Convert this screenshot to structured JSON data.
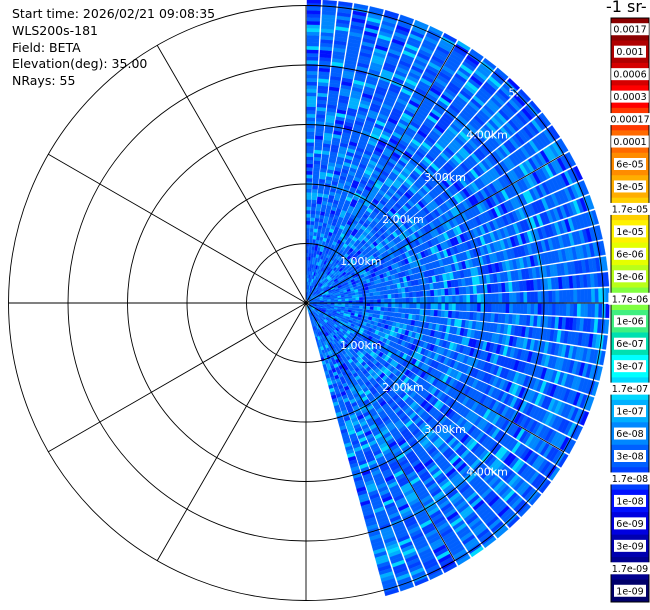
{
  "header": {
    "start_time": "Start time: 2026/02/21 09:08:35",
    "instrument": "WLS200s-181",
    "field": "Field: BETA",
    "elevation": "Elevation(deg): 35.00",
    "nrays": "NRays: 55"
  },
  "colorbar": {
    "title_fragment": "-1 sr-",
    "labels": [
      "0.0017",
      "0.001",
      "0.0006",
      "0.0003",
      "0.00017",
      "0.0001",
      "6e-05",
      "3e-05",
      "1.7e-05",
      "1e-05",
      "6e-06",
      "3e-06",
      "1.7e-06",
      "1e-06",
      "6e-07",
      "3e-07",
      "1.7e-07",
      "1e-07",
      "6e-08",
      "3e-08",
      "1.7e-08",
      "1e-08",
      "6e-09",
      "3e-09",
      "1.7e-09",
      "1e-09"
    ],
    "colors": [
      "#8b0000",
      "#b00000",
      "#d40000",
      "#ff0000",
      "#ff3800",
      "#ff6a00",
      "#ff8c00",
      "#ffae00",
      "#ffd000",
      "#fff200",
      "#e6ff00",
      "#b8ff1a",
      "#80ff40",
      "#40f080",
      "#00e0b0",
      "#00ffff",
      "#00d8ff",
      "#00b0ff",
      "#0088ff",
      "#0060ff",
      "#0040ff",
      "#0010ff",
      "#0000e0",
      "#0000b0",
      "#000090",
      "#00006a"
    ]
  },
  "chart_data": {
    "type": "heatmap",
    "projection": "polar PPI sector",
    "field": "BETA",
    "elevation_deg": 35.0,
    "n_rays": 55,
    "azimuth_range_deg": [
      0,
      165
    ],
    "range_rings_km": [
      1,
      2,
      3,
      4,
      5
    ],
    "max_range_km": 5.1,
    "ring_labels_right_top": [
      "1.00km",
      "2.00km",
      "3.00km",
      "4.00km",
      "5."
    ],
    "ring_labels_right_bottom": [
      "1.00km",
      "2.00km",
      "3.00km",
      "4.00km"
    ],
    "typical_value_range": [
      1.7e-08,
      1.7e-07
    ]
  }
}
